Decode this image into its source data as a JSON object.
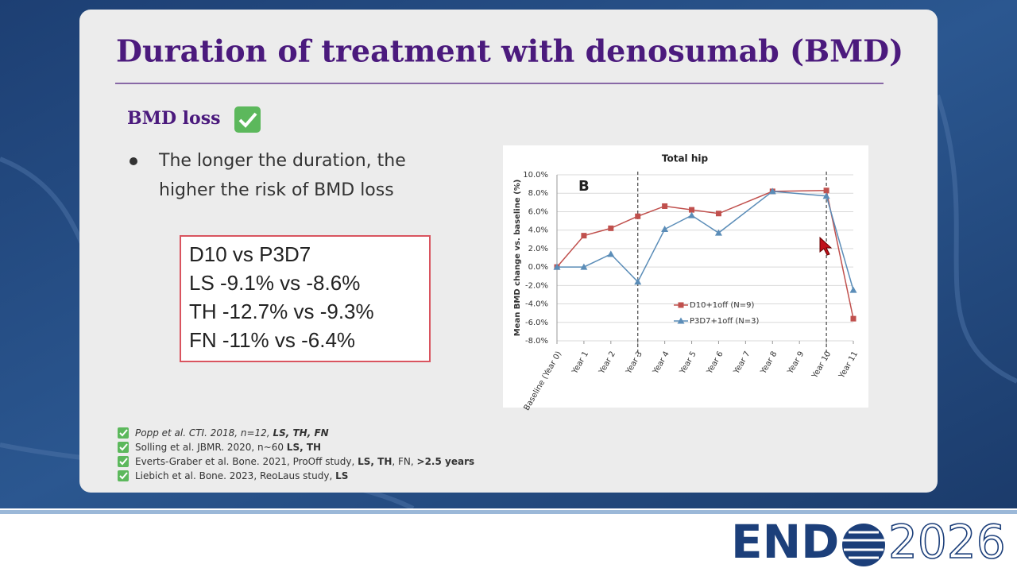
{
  "slide": {
    "title": "Duration of treatment with denosumab (BMD)",
    "subtitle": "BMD loss",
    "bullet": [
      "The longer the duration, the",
      "higher the risk of BMD loss"
    ],
    "box": [
      "D10 vs P3D7",
      "LS -9.1% vs -8.6%",
      "TH -12.7% vs -9.3%",
      "FN  -11% vs -6.4%"
    ],
    "references": [
      [
        {
          "text": "Popp et al. CTI. 2018, n=12, ",
          "italic": true
        },
        {
          "text": "LS, TH, FN",
          "italic": true,
          "bold": true
        }
      ],
      [
        {
          "text": "Solling et al. JBMR. 2020, n~60 "
        },
        {
          "text": "LS, TH",
          "bold": true
        }
      ],
      [
        {
          "text": "Everts-Graber et al. Bone. 2021, ProOff study, "
        },
        {
          "text": "LS, TH",
          "bold": true
        },
        {
          "text": ", FN, "
        },
        {
          "text": ">2.5 years",
          "bold": true
        }
      ],
      [
        {
          "text": "Liebich et al. Bone. 2023, ReoLaus study, "
        },
        {
          "text": "LS",
          "bold": true
        }
      ]
    ]
  },
  "chart": {
    "type": "line",
    "title": "Total hip",
    "panel": "B",
    "ylabel": "Mean BMD change vs. baseline (%)",
    "x": [
      0,
      1,
      2,
      3,
      4,
      5,
      6,
      8,
      10,
      11
    ],
    "xlim": [
      0,
      11
    ],
    "xticks": [
      {
        "value": 0,
        "label": "Baseline (Year 0)"
      },
      {
        "value": 1,
        "label": "Year 1"
      },
      {
        "value": 2,
        "label": "Year 2"
      },
      {
        "value": 3,
        "label": "Year 3"
      },
      {
        "value": 4,
        "label": "Year 4"
      },
      {
        "value": 5,
        "label": "Year 5"
      },
      {
        "value": 6,
        "label": "Year 6"
      },
      {
        "value": 7,
        "label": "Year 7"
      },
      {
        "value": 8,
        "label": "Year 8"
      },
      {
        "value": 9,
        "label": "Year 9"
      },
      {
        "value": 10,
        "label": "Year 10"
      },
      {
        "value": 11,
        "label": "Year 11"
      }
    ],
    "ylim": [
      -8,
      10
    ],
    "yticks": [
      {
        "value": -8,
        "label": "-8.0%"
      },
      {
        "value": -6,
        "label": "-6.0%"
      },
      {
        "value": -4,
        "label": "-4.0%"
      },
      {
        "value": -2,
        "label": "-2.0%"
      },
      {
        "value": 0,
        "label": "0.0%"
      },
      {
        "value": 2,
        "label": "2.0%"
      },
      {
        "value": 4,
        "label": "4.0%"
      },
      {
        "value": 6,
        "label": "6.0%"
      },
      {
        "value": 8,
        "label": "8.0%"
      },
      {
        "value": 10,
        "label": "10.0%"
      }
    ],
    "grid": true,
    "vlines": [
      3,
      10
    ],
    "series": [
      {
        "name": "D10+1off (N=9)",
        "color": "#c0504d",
        "marker": "square",
        "values": [
          0,
          3.4,
          4.2,
          5.5,
          6.6,
          6.2,
          5.8,
          8.2,
          8.3,
          -5.6
        ]
      },
      {
        "name": "P3D7+1off (N=3)",
        "color": "#5b8db8",
        "marker": "triangle",
        "values": [
          0,
          0,
          1.4,
          -1.6,
          4.1,
          5.6,
          3.7,
          8.2,
          7.7,
          -2.5
        ]
      }
    ]
  },
  "logo": {
    "left": "END",
    "right": "2026"
  }
}
